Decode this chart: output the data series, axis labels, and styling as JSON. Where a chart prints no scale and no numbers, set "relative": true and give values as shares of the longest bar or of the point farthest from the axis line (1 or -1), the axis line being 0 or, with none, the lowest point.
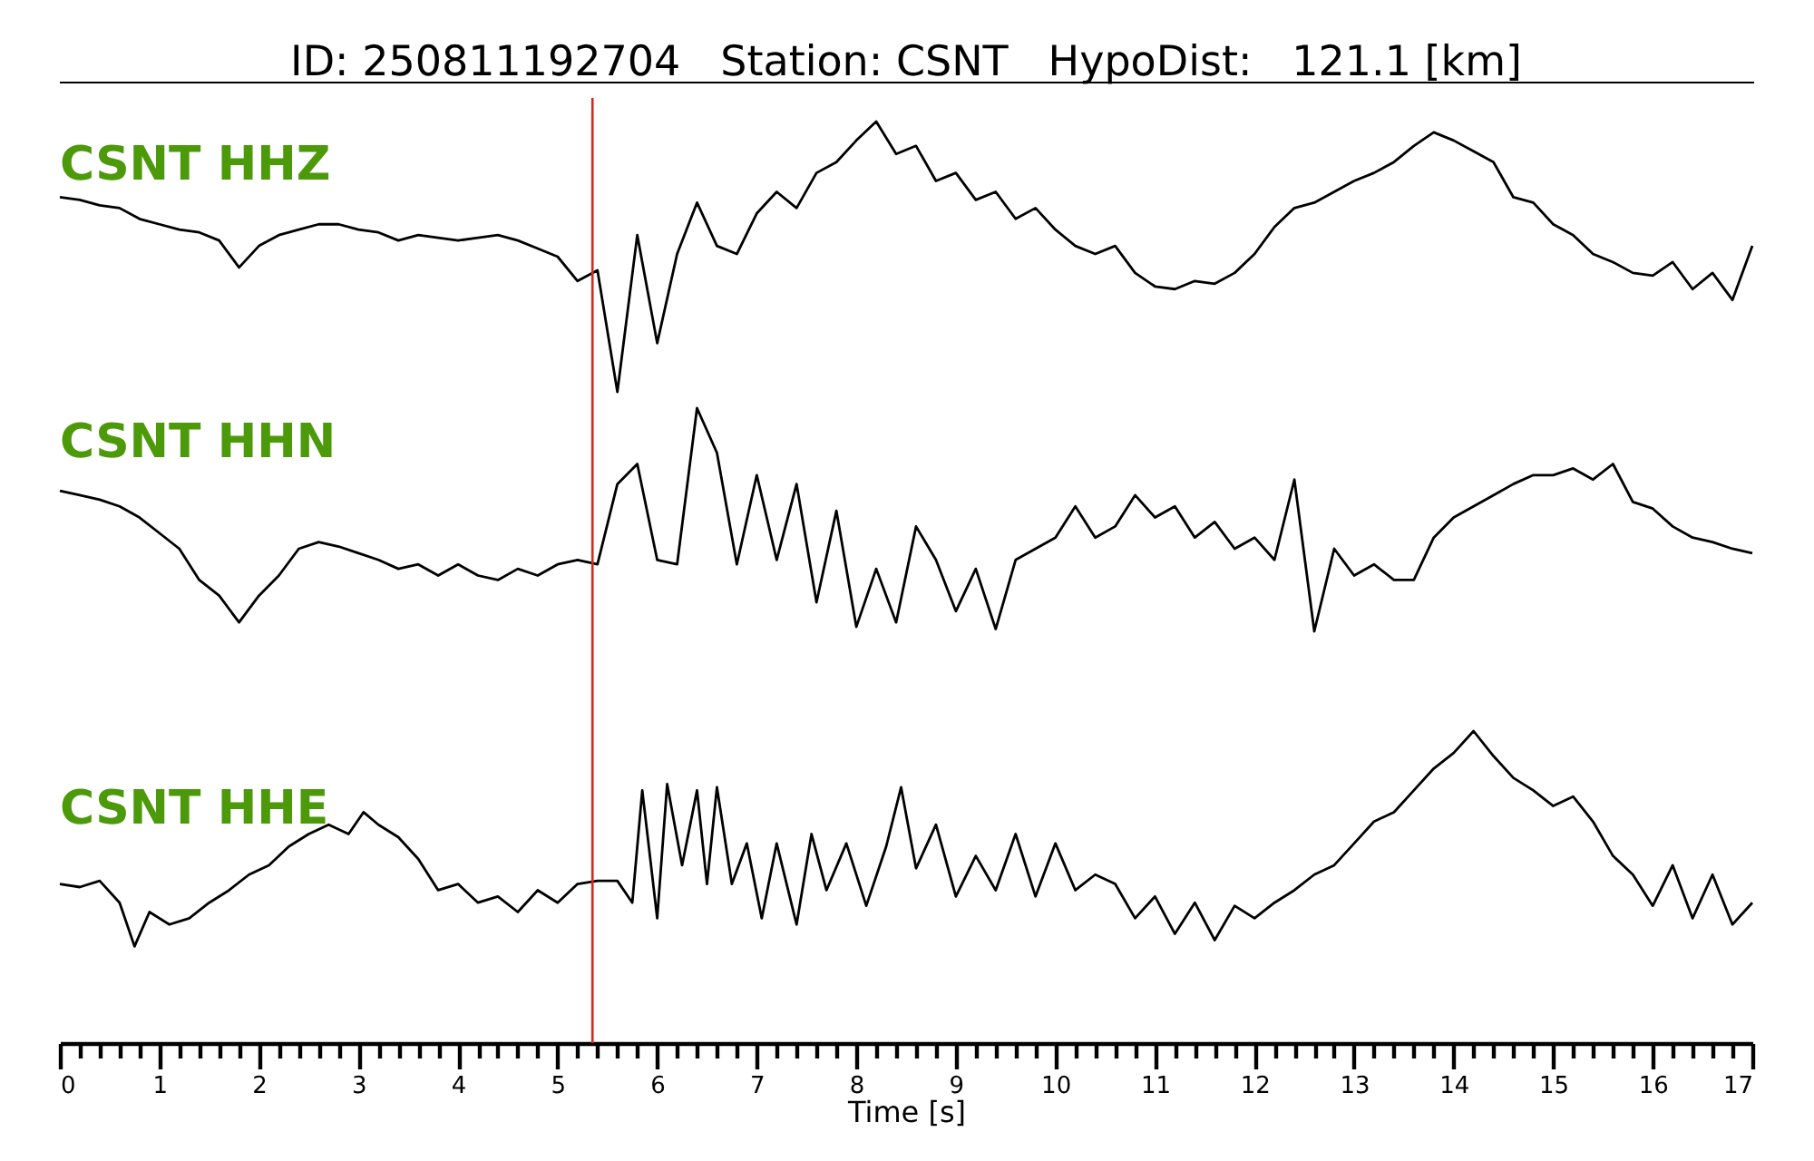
{
  "chart_data": [
    {
      "type": "line",
      "title": "ID: 250811192704   Station: CSNT   HypoDist:   121.1 [km]",
      "relative": true,
      "tick_labels": false,
      "categories": [
        null,
        null,
        null,
        null,
        null,
        null,
        null,
        null,
        null,
        null,
        null,
        null,
        null,
        null,
        null,
        null,
        null,
        null,
        null,
        null,
        null,
        null,
        null,
        null,
        null,
        null,
        null,
        null,
        null,
        null,
        null,
        null,
        null,
        null,
        null,
        null,
        null,
        null,
        null,
        null,
        null,
        null,
        null,
        null,
        null,
        null,
        null,
        null,
        null,
        null,
        null,
        null,
        null,
        null,
        null,
        null,
        null,
        null,
        null,
        null,
        null,
        null,
        null,
        null,
        null,
        null,
        null,
        null,
        null,
        null,
        null,
        null,
        null,
        null,
        null,
        null,
        null,
        null,
        null,
        null,
        null,
        null,
        null,
        null,
        null,
        null
      ],
      "series": [
        {
          "name": "CSNT HHZ",
          "color": "#000000",
          "values": [
            0.72,
            0.71,
            0.69,
            0.68,
            0.64,
            0.62,
            0.6,
            0.59,
            0.56,
            0.46,
            0.54,
            0.58,
            0.6,
            0.62,
            0.62,
            0.6,
            0.59,
            0.56,
            0.58,
            0.57,
            0.56,
            0.57,
            0.58,
            0.56,
            0.53,
            0.5,
            0.41,
            0.45,
            0,
            0.58,
            0.18,
            0.51,
            0.7,
            0.54,
            0.51,
            0.66,
            0.74,
            0.68,
            0.81,
            0.85,
            0.93,
            1,
            0.88,
            0.91,
            0.78,
            0.81,
            0.71,
            0.74,
            0.64,
            0.68,
            0.6,
            0.54,
            0.51,
            0.54,
            0.44,
            0.39,
            0.38,
            0.41,
            0.4,
            0.44,
            0.51,
            0.61,
            0.68,
            0.7,
            0.74,
            0.78,
            0.81,
            0.85,
            0.91,
            0.96,
            0.93,
            0.89,
            0.85,
            0.72,
            0.7,
            0.62,
            0.58,
            0.51,
            0.48,
            0.44,
            0.43,
            0.48,
            0.38,
            0.44,
            0.34,
            0.54
          ]
        }
      ]
    },
    {
      "type": "line",
      "relative": true,
      "tick_labels": false,
      "categories": [
        null,
        null,
        null,
        null,
        null,
        null,
        null,
        null,
        null,
        null,
        null,
        null,
        null,
        null,
        null,
        null,
        null,
        null,
        null,
        null,
        null,
        null,
        null,
        null,
        null,
        null,
        null,
        null,
        null,
        null,
        null,
        null,
        null,
        null,
        null,
        null,
        null,
        null,
        null,
        null,
        null,
        null,
        null,
        null,
        null,
        null,
        null,
        null,
        null,
        null,
        null,
        null,
        null,
        null,
        null,
        null,
        null,
        null,
        null,
        null,
        null,
        null,
        null,
        null,
        null,
        null,
        null,
        null,
        null,
        null,
        null,
        null,
        null,
        null,
        null,
        null,
        null,
        null,
        null,
        null,
        null,
        null,
        null,
        null,
        null,
        null
      ],
      "series": [
        {
          "name": "CSNT HHN",
          "color": "#000000",
          "values": [
            0.63,
            0.61,
            0.59,
            0.56,
            0.51,
            0.44,
            0.37,
            0.23,
            0.16,
            0.04,
            0.16,
            0.25,
            0.37,
            0.4,
            0.38,
            0.35,
            0.32,
            0.28,
            0.3,
            0.25,
            0.3,
            0.25,
            0.23,
            0.28,
            0.25,
            0.3,
            0.32,
            0.3,
            0.66,
            0.75,
            0.32,
            0.3,
            1,
            0.8,
            0.3,
            0.7,
            0.32,
            0.66,
            0.13,
            0.54,
            0.02,
            0.28,
            0.04,
            0.47,
            0.32,
            0.09,
            0.28,
            0.01,
            0.32,
            0.37,
            0.42,
            0.56,
            0.42,
            0.47,
            0.61,
            0.51,
            0.56,
            0.42,
            0.49,
            0.37,
            0.42,
            0.32,
            0.68,
            0,
            0.37,
            0.25,
            0.3,
            0.23,
            0.23,
            0.42,
            0.51,
            0.56,
            0.61,
            0.66,
            0.7,
            0.7,
            0.73,
            0.68,
            0.75,
            0.58,
            0.55,
            0.47,
            0.42,
            0.4,
            0.37,
            0.35
          ]
        }
      ]
    },
    {
      "type": "line",
      "relative": true,
      "xlabel": "Time [s]",
      "xlim": [
        0,
        17
      ],
      "tick_labels": "x",
      "xticks": [
        0,
        {
          "value": 0.2,
          "label": null
        },
        {
          "value": 0.4,
          "label": null
        },
        {
          "value": 0.6,
          "label": null
        },
        {
          "value": 0.8,
          "label": null
        },
        1,
        {
          "value": 1.2,
          "label": null
        },
        {
          "value": 1.4,
          "label": null
        },
        {
          "value": 1.6,
          "label": null
        },
        {
          "value": 1.8,
          "label": null
        },
        2,
        {
          "value": 2.2,
          "label": null
        },
        {
          "value": 2.4,
          "label": null
        },
        {
          "value": 2.6,
          "label": null
        },
        {
          "value": 2.8,
          "label": null
        },
        3,
        {
          "value": 3.2,
          "label": null
        },
        {
          "value": 3.4,
          "label": null
        },
        {
          "value": 3.6,
          "label": null
        },
        {
          "value": 3.8,
          "label": null
        },
        4,
        {
          "value": 4.2,
          "label": null
        },
        {
          "value": 4.4,
          "label": null
        },
        {
          "value": 4.6,
          "label": null
        },
        {
          "value": 4.8,
          "label": null
        },
        5,
        {
          "value": 5.2,
          "label": null
        },
        {
          "value": 5.4,
          "label": null
        },
        {
          "value": 5.6,
          "label": null
        },
        {
          "value": 5.8,
          "label": null
        },
        6,
        {
          "value": 6.2,
          "label": null
        },
        {
          "value": 6.4,
          "label": null
        },
        {
          "value": 6.6,
          "label": null
        },
        {
          "value": 6.8,
          "label": null
        },
        7,
        {
          "value": 7.2,
          "label": null
        },
        {
          "value": 7.4,
          "label": null
        },
        {
          "value": 7.6,
          "label": null
        },
        {
          "value": 7.8,
          "label": null
        },
        8,
        {
          "value": 8.2,
          "label": null
        },
        {
          "value": 8.4,
          "label": null
        },
        {
          "value": 8.6,
          "label": null
        },
        {
          "value": 8.8,
          "label": null
        },
        9,
        {
          "value": 9.2,
          "label": null
        },
        {
          "value": 9.4,
          "label": null
        },
        {
          "value": 9.6,
          "label": null
        },
        {
          "value": 9.8,
          "label": null
        },
        10,
        {
          "value": 10.2,
          "label": null
        },
        {
          "value": 10.4,
          "label": null
        },
        {
          "value": 10.6,
          "label": null
        },
        {
          "value": 10.8,
          "label": null
        },
        11,
        {
          "value": 11.2,
          "label": null
        },
        {
          "value": 11.4,
          "label": null
        },
        {
          "value": 11.6,
          "label": null
        },
        {
          "value": 11.8,
          "label": null
        },
        12,
        {
          "value": 12.2,
          "label": null
        },
        {
          "value": 12.4,
          "label": null
        },
        {
          "value": 12.6,
          "label": null
        },
        {
          "value": 12.8,
          "label": null
        },
        13,
        {
          "value": 13.2,
          "label": null
        },
        {
          "value": 13.4,
          "label": null
        },
        {
          "value": 13.6,
          "label": null
        },
        {
          "value": 13.8,
          "label": null
        },
        14,
        {
          "value": 14.2,
          "label": null
        },
        {
          "value": 14.4,
          "label": null
        },
        {
          "value": 14.6,
          "label": null
        },
        {
          "value": 14.8,
          "label": null
        },
        15,
        {
          "value": 15.2,
          "label": null
        },
        {
          "value": 15.4,
          "label": null
        },
        {
          "value": 15.6,
          "label": null
        },
        {
          "value": 15.8,
          "label": null
        },
        16,
        {
          "value": 16.2,
          "label": null
        },
        {
          "value": 16.4,
          "label": null
        },
        {
          "value": 16.6,
          "label": null
        },
        {
          "value": 16.8,
          "label": null
        },
        17
      ],
      "series": [
        {
          "name": "CSNT HHE",
          "color": "#000000",
          "x": [
            0,
            0.2,
            0.4,
            0.6,
            0.75,
            0.9,
            1.1,
            1.3,
            1.5,
            1.7,
            1.9,
            2.1,
            2.3,
            2.5,
            2.7,
            2.9,
            3.05,
            3.2,
            3.4,
            3.6,
            3.8,
            4.0,
            4.2,
            4.4,
            4.6,
            4.8,
            5.0,
            5.2,
            5.4,
            5.6,
            5.75,
            5.85,
            6.0,
            6.1,
            6.25,
            6.4,
            6.5,
            6.6,
            6.75,
            6.9,
            7.05,
            7.2,
            7.4,
            7.55,
            7.7,
            7.9,
            8.1,
            8.3,
            8.45,
            8.6,
            8.8,
            9.0,
            9.2,
            9.4,
            9.6,
            9.8,
            10.0,
            10.2,
            10.4,
            10.6,
            10.8,
            11.0,
            11.2,
            11.4,
            11.6,
            11.8,
            12.0,
            12.2,
            12.4,
            12.6,
            12.8,
            13.0,
            13.2,
            13.4,
            13.6,
            13.8,
            14.0,
            14.2,
            14.4,
            14.6,
            14.8,
            15.0,
            15.2,
            15.4,
            15.6,
            15.8,
            16.0,
            16.2,
            16.4,
            16.6,
            16.8,
            17.0
          ],
          "values": [
            0.51,
            0.5,
            0.52,
            0.45,
            0.31,
            0.42,
            0.38,
            0.4,
            0.45,
            0.49,
            0.54,
            0.57,
            0.63,
            0.67,
            0.7,
            0.67,
            0.74,
            0.7,
            0.66,
            0.59,
            0.49,
            0.51,
            0.45,
            0.47,
            0.42,
            0.49,
            0.45,
            0.51,
            0.52,
            0.52,
            0.45,
            0.81,
            0.4,
            0.83,
            0.57,
            0.81,
            0.51,
            0.82,
            0.51,
            0.64,
            0.4,
            0.64,
            0.38,
            0.67,
            0.49,
            0.64,
            0.44,
            0.63,
            0.82,
            0.56,
            0.7,
            0.47,
            0.6,
            0.49,
            0.67,
            0.47,
            0.64,
            0.49,
            0.54,
            0.51,
            0.4,
            0.47,
            0.35,
            0.45,
            0.33,
            0.44,
            0.4,
            0.45,
            0.49,
            0.54,
            0.57,
            0.64,
            0.71,
            0.74,
            0.81,
            0.88,
            0.93,
            1,
            0.92,
            0.85,
            0.81,
            0.76,
            0.79,
            0.71,
            0.6,
            0.54,
            0.44,
            0.57,
            0.4,
            0.54,
            0.38,
            0.45
          ]
        }
      ],
      "ref_lines": [
        {
          "axis": "x",
          "value": 5.35,
          "color": "#d62728"
        }
      ]
    }
  ]
}
